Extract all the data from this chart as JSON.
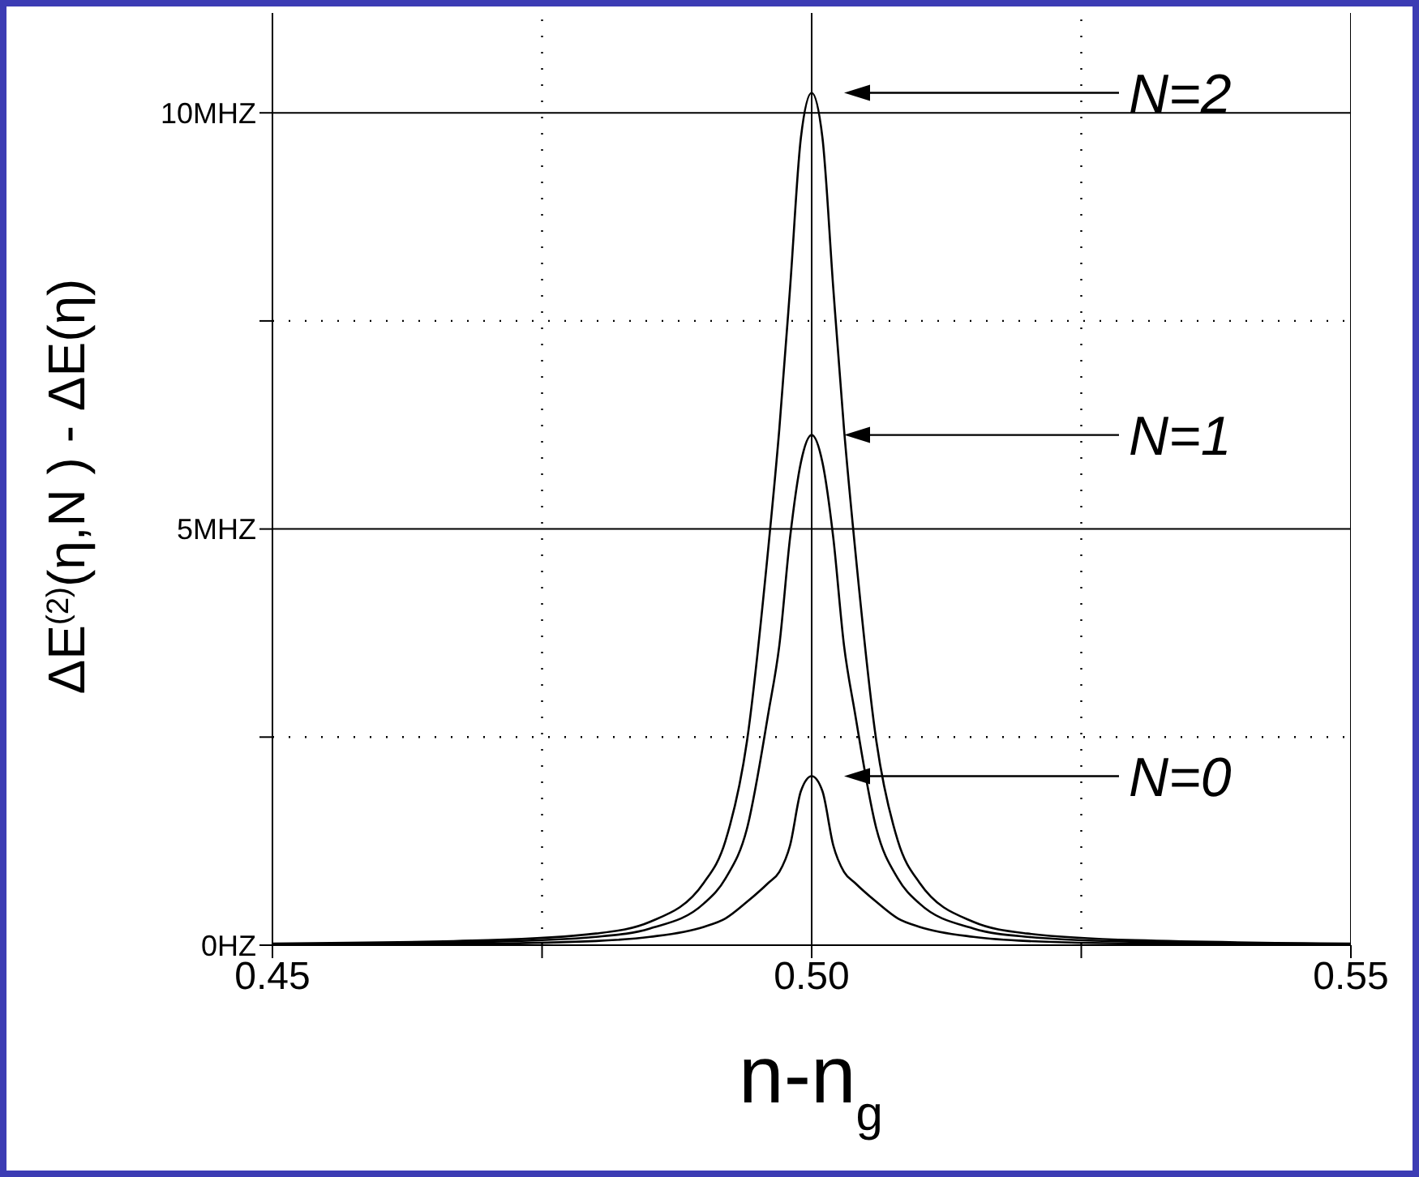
{
  "chart_data": {
    "type": "line",
    "ylabel": "ΔE$^{(2)}$(η,N ) - ΔE(η)",
    "xlabel": "n-n$_{g}$",
    "x": [
      0.45,
      0.47,
      0.48,
      0.485,
      0.49,
      0.492,
      0.494,
      0.496,
      0.497,
      0.498,
      0.499,
      0.5,
      0.501,
      0.502,
      0.503,
      0.504,
      0.506,
      0.508,
      0.51,
      0.515,
      0.52,
      0.53,
      0.55
    ],
    "series": [
      {
        "color": "#000000",
        "values": [
          0.02,
          0.06,
          0.14,
          0.28,
          0.75,
          1.25,
          2.45,
          4.8,
          6.2,
          7.9,
          9.7,
          10.24,
          9.7,
          7.9,
          6.2,
          4.8,
          2.45,
          1.25,
          0.75,
          0.28,
          0.14,
          0.06,
          0.02
        ]
      },
      {
        "color": "#000000",
        "values": [
          0.01,
          0.04,
          0.1,
          0.2,
          0.5,
          0.8,
          1.4,
          2.8,
          3.6,
          4.9,
          5.8,
          6.13,
          5.8,
          4.9,
          3.6,
          2.8,
          1.4,
          0.8,
          0.5,
          0.2,
          0.1,
          0.04,
          0.01
        ]
      },
      {
        "color": "#000000",
        "values": [
          0.01,
          0.02,
          0.05,
          0.1,
          0.22,
          0.32,
          0.52,
          0.75,
          0.88,
          1.2,
          1.85,
          2.03,
          1.85,
          1.2,
          0.88,
          0.75,
          0.52,
          0.32,
          0.22,
          0.1,
          0.05,
          0.02,
          0.01
        ]
      }
    ],
    "annotations": [
      "N=2",
      "N=1",
      "N=0"
    ],
    "xlim": [
      0.45,
      0.55
    ],
    "xticks": [
      {
        "value": 0.45,
        "label": "0.45"
      },
      {
        "value": 0.475,
        "label": null
      },
      {
        "value": 0.5,
        "label": "0.50"
      },
      {
        "value": 0.525,
        "label": null
      },
      {
        "value": 0.55,
        "label": "0.55"
      }
    ],
    "ylim": [
      0,
      11.2
    ],
    "yticks": [
      {
        "value": 0,
        "label": "0HZ"
      },
      {
        "value": 2.5,
        "label": null
      },
      {
        "value": 5,
        "label": "5MHZ"
      },
      {
        "value": 7.5,
        "label": null
      },
      {
        "value": 10,
        "label": "10MHZ"
      }
    ],
    "grid": true,
    "marker": "none",
    "line_style": "solid"
  }
}
